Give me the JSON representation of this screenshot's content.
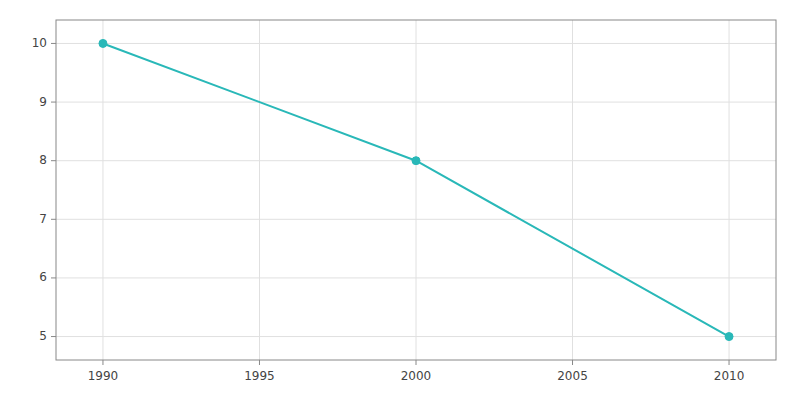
{
  "chart_data": {
    "type": "line",
    "x": [
      1990,
      2000,
      2010
    ],
    "values": [
      10,
      8,
      5
    ],
    "color": "#29B8B8",
    "marker": "circle",
    "xlim": [
      1988.5,
      2011.5
    ],
    "ylim": [
      4.6,
      10.4
    ],
    "xticks": [
      1990,
      1995,
      2000,
      2005,
      2010
    ],
    "yticks": [
      5,
      6,
      7,
      8,
      9,
      10
    ],
    "grid": true
  }
}
